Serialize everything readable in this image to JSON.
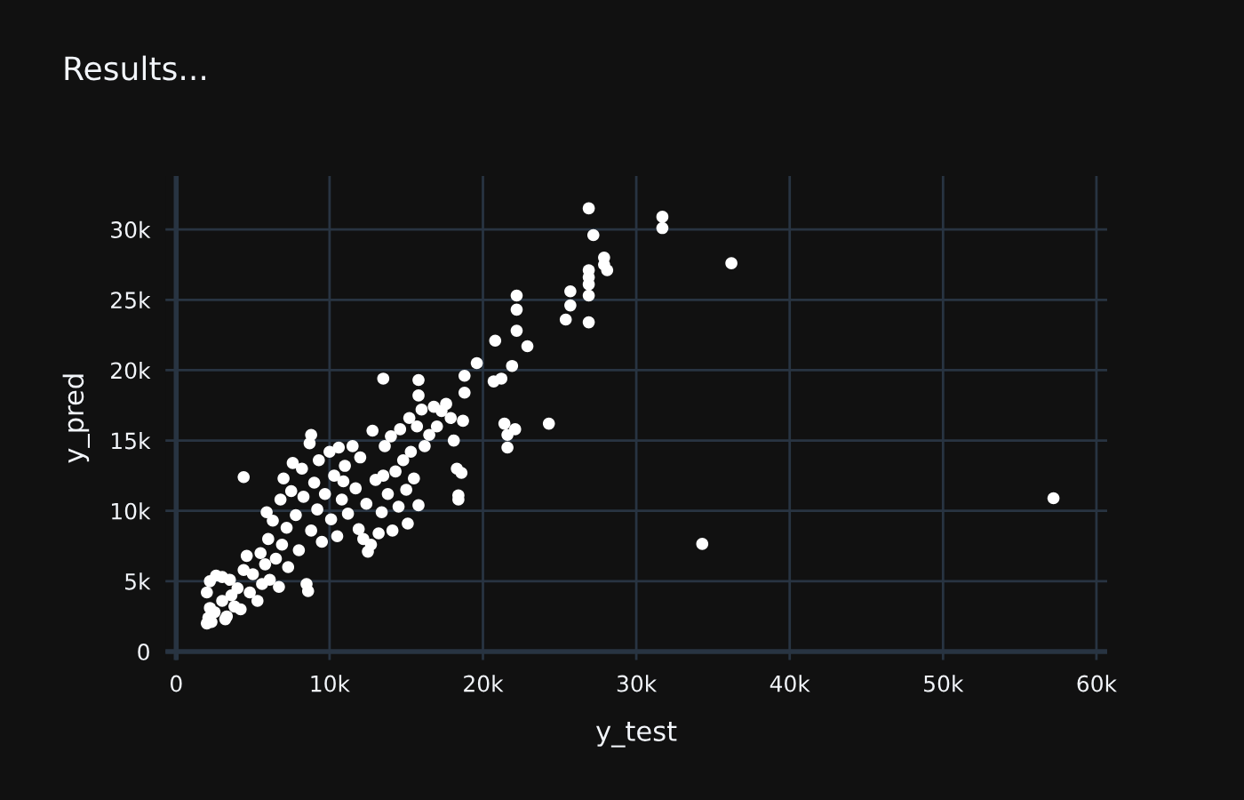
{
  "chart_data": {
    "type": "scatter",
    "title": "Results...",
    "xlabel": "y_test",
    "ylabel": "y_pred",
    "xlim": [
      -700,
      60700
    ],
    "ylim": [
      -600,
      33800
    ],
    "xticks": [
      0,
      {
        "value": 10000,
        "label": "10k"
      },
      {
        "value": 20000,
        "label": "20k"
      },
      {
        "value": 30000,
        "label": "30k"
      },
      {
        "value": 40000,
        "label": "40k"
      },
      {
        "value": 50000,
        "label": "50k"
      },
      {
        "value": 60000,
        "label": "60k"
      }
    ],
    "yticks": [
      0,
      {
        "value": 5000,
        "label": "5k"
      },
      {
        "value": 10000,
        "label": "10k"
      },
      {
        "value": 15000,
        "label": "15k"
      },
      {
        "value": 20000,
        "label": "20k"
      },
      {
        "value": 25000,
        "label": "25k"
      },
      {
        "value": 30000,
        "label": "30k"
      }
    ],
    "grid": true,
    "marker": "circle",
    "series": [
      {
        "color": "#ffffff",
        "x": [
          26900,
          31700,
          31700,
          27200,
          36200,
          27900,
          27900,
          28100,
          26900,
          26900,
          26900,
          26900,
          26900,
          25700,
          25700,
          25400,
          22200,
          22200,
          22200,
          22900,
          20800,
          19600,
          18800,
          18800,
          21900,
          20700,
          21200,
          15800,
          13500,
          15800,
          24300,
          21400,
          22100,
          21600,
          21600,
          18300,
          18600,
          18400,
          18400,
          34300,
          57200,
          4400,
          8800,
          18700,
          15100,
          12500,
          2000,
          2100,
          2300,
          2500,
          2200,
          2000,
          2200,
          2600,
          3000,
          3500,
          3000,
          3300,
          3800,
          4000,
          4200,
          4400,
          4600,
          4800,
          5000,
          5300,
          5500,
          5600,
          5800,
          6000,
          6100,
          6300,
          6500,
          6700,
          6800,
          6900,
          7000,
          7200,
          7300,
          7500,
          7600,
          7800,
          8000,
          8200,
          8300,
          8500,
          8600,
          8700,
          8800,
          9000,
          9200,
          9300,
          9500,
          9700,
          10000,
          10100,
          10300,
          10500,
          10600,
          10800,
          11000,
          11200,
          11500,
          11700,
          11900,
          12000,
          12200,
          12400,
          12700,
          12800,
          13000,
          13200,
          13400,
          13600,
          13800,
          14000,
          14100,
          14300,
          14500,
          14600,
          14800,
          15000,
          15200,
          15300,
          15500,
          15700,
          15800,
          16000,
          16200,
          16500,
          16800,
          17000,
          17300,
          17600,
          17900,
          18100,
          3200,
          3600,
          5900,
          10900,
          13500
        ],
        "values": [
          31500,
          30900,
          30100,
          29600,
          27600,
          28000,
          27500,
          27100,
          27100,
          26600,
          26100,
          25300,
          23400,
          25600,
          24600,
          23600,
          25300,
          24300,
          22800,
          21700,
          22100,
          20500,
          19600,
          18400,
          20300,
          19200,
          19400,
          19300,
          19400,
          18200,
          16200,
          16200,
          15800,
          15400,
          14500,
          13000,
          12700,
          11100,
          10800,
          7650,
          10900,
          12400,
          15400,
          16400,
          9100,
          7100,
          2000,
          2400,
          2100,
          2800,
          3100,
          4200,
          5000,
          5400,
          5300,
          5100,
          3600,
          2500,
          3200,
          4500,
          3000,
          5800,
          6800,
          4200,
          5500,
          3600,
          7000,
          4800,
          6200,
          8000,
          5100,
          9300,
          6600,
          4600,
          10800,
          7600,
          12300,
          8800,
          6000,
          11400,
          13400,
          9700,
          7200,
          13000,
          11000,
          4800,
          4300,
          14800,
          8600,
          12000,
          10100,
          13600,
          7800,
          11200,
          14200,
          9400,
          12500,
          8200,
          14500,
          10800,
          13200,
          9800,
          14600,
          11600,
          8700,
          13800,
          8000,
          10500,
          7600,
          15700,
          12200,
          8400,
          9900,
          14600,
          11200,
          15300,
          8600,
          12800,
          10300,
          15800,
          13600,
          11500,
          16600,
          14200,
          12300,
          16000,
          10400,
          17200,
          14600,
          15400,
          17400,
          16000,
          17100,
          17600,
          16600,
          15000,
          2300,
          4000,
          9900,
          12100,
          12500
        ]
      }
    ]
  }
}
